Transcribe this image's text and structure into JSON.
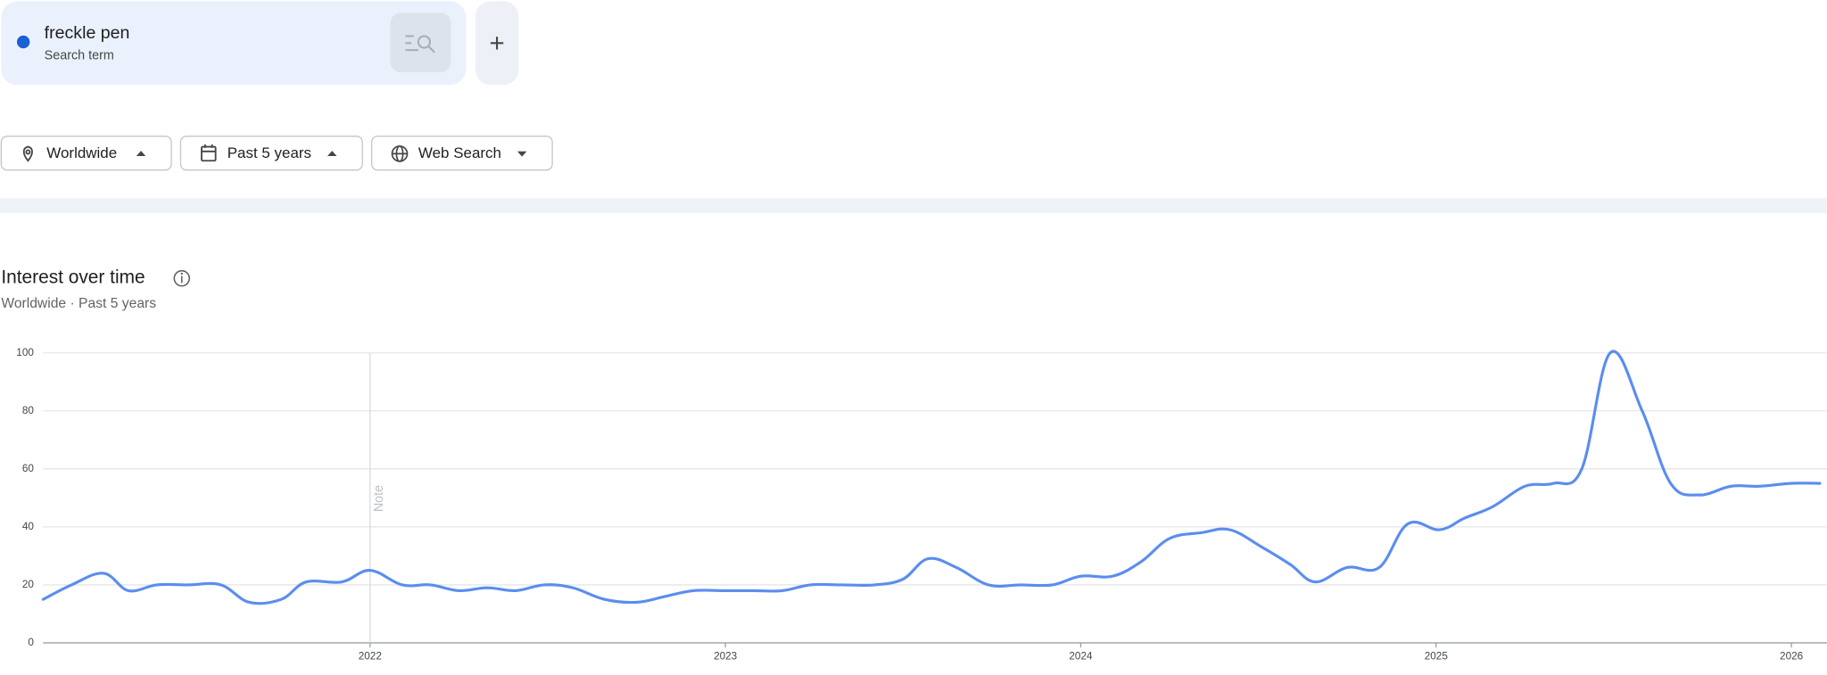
{
  "search_term": {
    "label": "freckle pen",
    "sublabel": "Search term"
  },
  "filters": [
    "Worldwide",
    "Past 5 years",
    "Web Search"
  ],
  "section": {
    "title": "Interest over time",
    "subtitle": "Worldwide · Past 5 years"
  },
  "chart_data": {
    "type": "line",
    "x": [
      2021.08,
      2021.16,
      2021.25,
      2021.32,
      2021.4,
      2021.49,
      2021.58,
      2021.66,
      2021.75,
      2021.82,
      2021.92,
      2022.0,
      2022.09,
      2022.17,
      2022.25,
      2022.33,
      2022.41,
      2022.49,
      2022.57,
      2022.66,
      2022.75,
      2022.83,
      2022.91,
      2023.0,
      2023.08,
      2023.16,
      2023.24,
      2023.33,
      2023.42,
      2023.5,
      2023.57,
      2023.65,
      2023.74,
      2023.83,
      2023.92,
      2024.0,
      2024.09,
      2024.17,
      2024.25,
      2024.34,
      2024.42,
      2024.51,
      2024.59,
      2024.66,
      2024.75,
      2024.84,
      2024.92,
      2025.01,
      2025.08,
      2025.16,
      2025.25,
      2025.33,
      2025.41,
      2025.49,
      2025.58,
      2025.66,
      2025.74,
      2025.83,
      2025.91,
      2026.0,
      2026.08
    ],
    "values": [
      15,
      20,
      24,
      18,
      20,
      20,
      20,
      14,
      15,
      21,
      21,
      25,
      20,
      20,
      18,
      19,
      18,
      20,
      19,
      15,
      14,
      16,
      18,
      18,
      18,
      18,
      20,
      20,
      20,
      22,
      29,
      26,
      20,
      20,
      20,
      23,
      23,
      28,
      36,
      38,
      39,
      33,
      27,
      21,
      26,
      26,
      41,
      39,
      43,
      47,
      54,
      55,
      60,
      100,
      80,
      55,
      51,
      54,
      54,
      55,
      55
    ],
    "color": "#5b8def",
    "xlim": [
      2021.08,
      2026.1
    ],
    "ylim": [
      0,
      100
    ],
    "xticks": [
      2022,
      2023,
      2024,
      2025,
      2026
    ],
    "yticks": [
      0,
      20,
      40,
      60,
      80,
      100
    ],
    "grid": true,
    "annotations": [
      {
        "x": 2022,
        "text": "Note"
      }
    ]
  }
}
